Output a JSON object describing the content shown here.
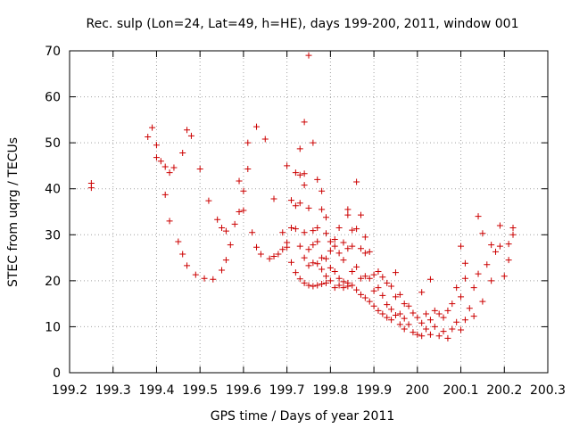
{
  "chart_data": {
    "type": "scatter",
    "title": "Rec. sulp (Lon=24, Lat=49, h=HE), days 199-200, 2011, window 001",
    "xlabel": "GPS time / Days of year 2011",
    "ylabel": "STEC from uqrg / TECUs",
    "xlim": [
      199.2,
      200.3
    ],
    "ylim": [
      0,
      70
    ],
    "grid": true,
    "marker": "+",
    "color": "#cc0000",
    "xticks": [
      199.2,
      199.3,
      199.4,
      199.5,
      199.6,
      199.7,
      199.8,
      199.9,
      200,
      200.1,
      200.2,
      200.3
    ],
    "xtick_labels": [
      "199.2",
      "199.3",
      "199.4",
      "199.5",
      "199.6",
      "199.7",
      "199.8",
      "199.9",
      "200",
      "200.1",
      "200.2",
      "200.3"
    ],
    "yticks": [
      0,
      10,
      20,
      30,
      40,
      50,
      60,
      70
    ],
    "ytick_labels": [
      "0",
      "10",
      "20",
      "30",
      "40",
      "50",
      "60",
      "70"
    ],
    "series": [
      {
        "name": "STEC",
        "points": [
          [
            199.25,
            41.2
          ],
          [
            199.25,
            40.2
          ],
          [
            199.38,
            51.3
          ],
          [
            199.39,
            53.3
          ],
          [
            199.4,
            49.5
          ],
          [
            199.4,
            46.8
          ],
          [
            199.41,
            46.0
          ],
          [
            199.42,
            44.8
          ],
          [
            199.42,
            38.7
          ],
          [
            199.43,
            43.5
          ],
          [
            199.43,
            33.0
          ],
          [
            199.44,
            44.6
          ],
          [
            199.45,
            28.5
          ],
          [
            199.46,
            47.8
          ],
          [
            199.46,
            25.8
          ],
          [
            199.47,
            52.8
          ],
          [
            199.47,
            23.3
          ],
          [
            199.48,
            51.5
          ],
          [
            199.49,
            21.3
          ],
          [
            199.5,
            44.3
          ],
          [
            199.51,
            20.5
          ],
          [
            199.52,
            37.4
          ],
          [
            199.53,
            20.3
          ],
          [
            199.54,
            33.3
          ],
          [
            199.55,
            31.5
          ],
          [
            199.55,
            22.3
          ],
          [
            199.56,
            30.8
          ],
          [
            199.56,
            24.5
          ],
          [
            199.57,
            27.8
          ],
          [
            199.58,
            32.3
          ],
          [
            199.59,
            41.7
          ],
          [
            199.59,
            35.0
          ],
          [
            199.6,
            39.5
          ],
          [
            199.6,
            35.3
          ],
          [
            199.61,
            50.0
          ],
          [
            199.61,
            44.3
          ],
          [
            199.62,
            30.5
          ],
          [
            199.63,
            53.5
          ],
          [
            199.63,
            27.3
          ],
          [
            199.64,
            25.8
          ],
          [
            199.65,
            50.8
          ],
          [
            199.66,
            24.8
          ],
          [
            199.67,
            37.8
          ],
          [
            199.67,
            25.3
          ],
          [
            199.68,
            25.8
          ],
          [
            199.69,
            30.5
          ],
          [
            199.69,
            26.8
          ],
          [
            199.7,
            45.0
          ],
          [
            199.7,
            27.3
          ],
          [
            199.7,
            28.3
          ],
          [
            199.71,
            37.5
          ],
          [
            199.71,
            31.5
          ],
          [
            199.71,
            24.0
          ],
          [
            199.72,
            43.5
          ],
          [
            199.72,
            36.3
          ],
          [
            199.72,
            31.3
          ],
          [
            199.72,
            21.8
          ],
          [
            199.73,
            48.7
          ],
          [
            199.73,
            43.0
          ],
          [
            199.73,
            36.9
          ],
          [
            199.73,
            27.5
          ],
          [
            199.73,
            20.4
          ],
          [
            199.74,
            54.5
          ],
          [
            199.74,
            43.3
          ],
          [
            199.74,
            40.8
          ],
          [
            199.74,
            30.5
          ],
          [
            199.74,
            25.0
          ],
          [
            199.74,
            19.5
          ],
          [
            199.75,
            69.0
          ],
          [
            199.75,
            35.8
          ],
          [
            199.75,
            26.8
          ],
          [
            199.75,
            23.3
          ],
          [
            199.75,
            19.0
          ],
          [
            199.76,
            50.0
          ],
          [
            199.76,
            30.9
          ],
          [
            199.76,
            27.8
          ],
          [
            199.76,
            23.9
          ],
          [
            199.76,
            18.8
          ],
          [
            199.77,
            42.0
          ],
          [
            199.77,
            31.5
          ],
          [
            199.77,
            28.5
          ],
          [
            199.77,
            23.7
          ],
          [
            199.77,
            19.0
          ],
          [
            199.78,
            39.5
          ],
          [
            199.78,
            35.5
          ],
          [
            199.78,
            25.0
          ],
          [
            199.78,
            22.5
          ],
          [
            199.78,
            19.3
          ],
          [
            199.79,
            33.8
          ],
          [
            199.79,
            30.3
          ],
          [
            199.79,
            24.8
          ],
          [
            199.79,
            21.0
          ],
          [
            199.79,
            19.5
          ],
          [
            199.8,
            28.5
          ],
          [
            199.8,
            26.5
          ],
          [
            199.8,
            22.8
          ],
          [
            199.8,
            20.0
          ],
          [
            199.81,
            29.0
          ],
          [
            199.81,
            27.5
          ],
          [
            199.81,
            22.0
          ],
          [
            199.81,
            18.5
          ],
          [
            199.82,
            31.5
          ],
          [
            199.82,
            26.0
          ],
          [
            199.82,
            20.5
          ],
          [
            199.82,
            19.0
          ],
          [
            199.83,
            28.3
          ],
          [
            199.83,
            24.5
          ],
          [
            199.83,
            19.8
          ],
          [
            199.83,
            18.5
          ],
          [
            199.84,
            35.5
          ],
          [
            199.84,
            34.3
          ],
          [
            199.84,
            27.0
          ],
          [
            199.84,
            19.5
          ],
          [
            199.84,
            18.8
          ],
          [
            199.85,
            31.0
          ],
          [
            199.85,
            27.5
          ],
          [
            199.85,
            22.0
          ],
          [
            199.85,
            19.0
          ],
          [
            199.86,
            41.5
          ],
          [
            199.86,
            31.3
          ],
          [
            199.86,
            23.0
          ],
          [
            199.86,
            18.0
          ],
          [
            199.87,
            34.3
          ],
          [
            199.87,
            27.0
          ],
          [
            199.87,
            20.5
          ],
          [
            199.87,
            17.0
          ],
          [
            199.88,
            29.5
          ],
          [
            199.88,
            26.0
          ],
          [
            199.88,
            21.0
          ],
          [
            199.88,
            16.3
          ],
          [
            199.89,
            26.3
          ],
          [
            199.89,
            20.5
          ],
          [
            199.89,
            15.5
          ],
          [
            199.9,
            21.3
          ],
          [
            199.9,
            17.8
          ],
          [
            199.9,
            14.5
          ],
          [
            199.91,
            22.0
          ],
          [
            199.91,
            18.5
          ],
          [
            199.91,
            13.5
          ],
          [
            199.92,
            20.8
          ],
          [
            199.92,
            16.8
          ],
          [
            199.92,
            12.8
          ],
          [
            199.93,
            19.5
          ],
          [
            199.93,
            14.8
          ],
          [
            199.93,
            12.0
          ],
          [
            199.94,
            18.8
          ],
          [
            199.94,
            13.8
          ],
          [
            199.94,
            11.5
          ],
          [
            199.95,
            21.8
          ],
          [
            199.95,
            16.5
          ],
          [
            199.95,
            12.5
          ],
          [
            199.96,
            17.0
          ],
          [
            199.96,
            12.8
          ],
          [
            199.96,
            10.5
          ],
          [
            199.97,
            15.0
          ],
          [
            199.97,
            11.8
          ],
          [
            199.97,
            9.5
          ],
          [
            199.98,
            14.5
          ],
          [
            199.98,
            10.5
          ],
          [
            199.99,
            13.0
          ],
          [
            199.99,
            8.8
          ],
          [
            200.0,
            12.0
          ],
          [
            200.0,
            8.3
          ],
          [
            200.01,
            17.5
          ],
          [
            200.01,
            10.8
          ],
          [
            200.01,
            8.0
          ],
          [
            200.02,
            12.8
          ],
          [
            200.02,
            9.5
          ],
          [
            200.03,
            20.3
          ],
          [
            200.03,
            11.5
          ],
          [
            200.03,
            8.3
          ],
          [
            200.04,
            13.5
          ],
          [
            200.04,
            10.0
          ],
          [
            200.05,
            12.8
          ],
          [
            200.05,
            8.0
          ],
          [
            200.06,
            12.0
          ],
          [
            200.06,
            9.0
          ],
          [
            200.07,
            13.5
          ],
          [
            200.07,
            7.5
          ],
          [
            200.08,
            15.0
          ],
          [
            200.08,
            9.5
          ],
          [
            200.09,
            18.5
          ],
          [
            200.09,
            11.0
          ],
          [
            200.1,
            27.5
          ],
          [
            200.1,
            16.5
          ],
          [
            200.1,
            9.3
          ],
          [
            200.11,
            23.8
          ],
          [
            200.11,
            20.5
          ],
          [
            200.11,
            11.5
          ],
          [
            200.12,
            14.0
          ],
          [
            200.13,
            18.5
          ],
          [
            200.13,
            12.3
          ],
          [
            200.14,
            34.0
          ],
          [
            200.14,
            21.5
          ],
          [
            200.15,
            15.5
          ],
          [
            200.15,
            30.3
          ],
          [
            200.16,
            23.5
          ],
          [
            200.17,
            27.8
          ],
          [
            200.17,
            20.0
          ],
          [
            200.18,
            26.3
          ],
          [
            200.19,
            32.0
          ],
          [
            200.19,
            27.5
          ],
          [
            200.2,
            21.0
          ],
          [
            200.21,
            28.0
          ],
          [
            200.21,
            24.5
          ],
          [
            200.22,
            31.5
          ],
          [
            200.22,
            30.0
          ]
        ]
      }
    ]
  }
}
